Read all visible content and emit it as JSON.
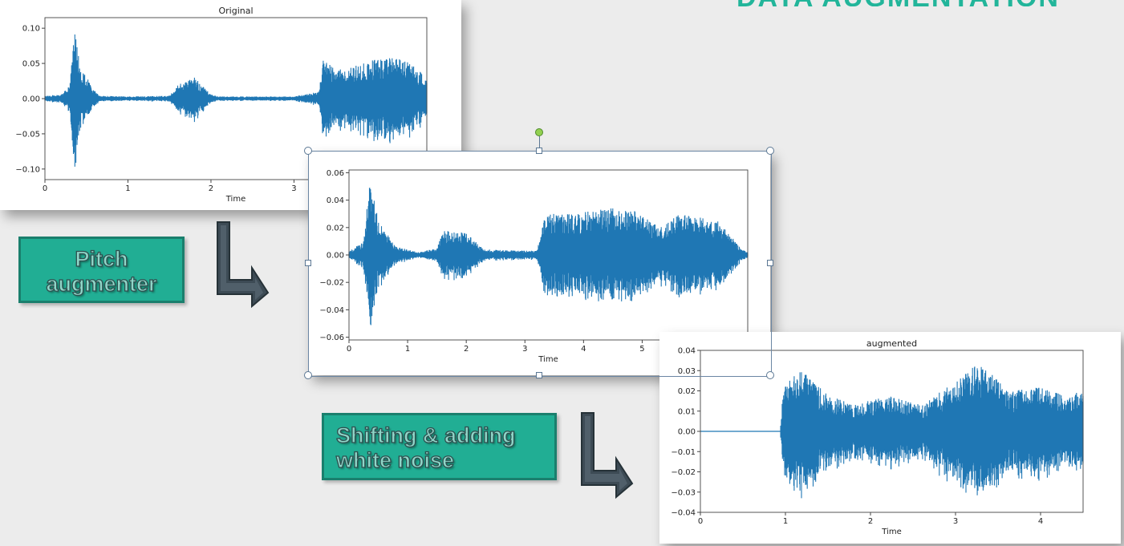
{
  "slide_title": "DATA AUGMENTATION",
  "colors": {
    "wave": "#1f77b4",
    "label_fill": "#21ae94",
    "arrow": "#37474f",
    "title": "#22b59a"
  },
  "labels": {
    "pitch": [
      "Pitch",
      "augmenter"
    ],
    "shift": [
      "Shifting & adding",
      "white noise"
    ]
  },
  "chart_data": [
    {
      "type": "line",
      "title": "Original",
      "xlabel": "Time",
      "ylabel": "",
      "xlim": [
        0,
        4.6
      ],
      "ylim": [
        -0.115,
        0.115
      ],
      "xticks": [
        "0",
        "1",
        "2",
        "3",
        "4"
      ],
      "xtick_values": [
        0,
        1,
        2,
        3,
        4
      ],
      "yticks": [
        "0.10",
        "0.05",
        "0.00",
        "−0.05",
        "−0.10"
      ],
      "ytick_values": [
        0.1,
        0.05,
        0.0,
        -0.05,
        -0.1
      ],
      "series": [
        {
          "envelope": [
            [
              0,
              0.004
            ],
            [
              0.2,
              0.006
            ],
            [
              0.3,
              0.02
            ],
            [
              0.36,
              0.105
            ],
            [
              0.42,
              0.05
            ],
            [
              0.55,
              0.02
            ],
            [
              0.65,
              0.004
            ],
            [
              1.0,
              0.003
            ],
            [
              1.5,
              0.004
            ],
            [
              1.6,
              0.02
            ],
            [
              1.8,
              0.03
            ],
            [
              2.0,
              0.006
            ],
            [
              2.1,
              0.003
            ],
            [
              3.0,
              0.003
            ],
            [
              3.3,
              0.01
            ],
            [
              3.35,
              0.055
            ],
            [
              3.6,
              0.04
            ],
            [
              3.9,
              0.055
            ],
            [
              4.2,
              0.06
            ],
            [
              4.4,
              0.05
            ],
            [
              4.6,
              0.03
            ]
          ]
        }
      ]
    },
    {
      "type": "line",
      "title": "",
      "xlabel": "Time",
      "ylabel": "",
      "xlim": [
        0,
        6.8
      ],
      "ylim": [
        -0.062,
        0.062
      ],
      "xticks": [
        "0",
        "1",
        "2",
        "3",
        "4",
        "5"
      ],
      "xtick_values": [
        0,
        1,
        2,
        3,
        4,
        5
      ],
      "yticks": [
        "0.06",
        "0.04",
        "0.02",
        "0.00",
        "−0.02",
        "−0.04",
        "−0.06"
      ],
      "ytick_values": [
        0.06,
        0.04,
        0.02,
        0.0,
        -0.02,
        -0.04,
        -0.06
      ],
      "series": [
        {
          "envelope": [
            [
              0,
              0.003
            ],
            [
              0.25,
              0.01
            ],
            [
              0.35,
              0.056
            ],
            [
              0.5,
              0.025
            ],
            [
              0.8,
              0.006
            ],
            [
              1.2,
              0.002
            ],
            [
              1.5,
              0.005
            ],
            [
              1.6,
              0.018
            ],
            [
              2.0,
              0.016
            ],
            [
              2.3,
              0.004
            ],
            [
              3.2,
              0.003
            ],
            [
              3.35,
              0.03
            ],
            [
              3.9,
              0.03
            ],
            [
              4.4,
              0.035
            ],
            [
              4.9,
              0.032
            ],
            [
              5.3,
              0.02
            ],
            [
              5.6,
              0.03
            ],
            [
              6.3,
              0.025
            ],
            [
              6.7,
              0.004
            ],
            [
              6.8,
              0.002
            ]
          ]
        }
      ]
    },
    {
      "type": "line",
      "title": "augmented",
      "xlabel": "Time",
      "ylabel": "",
      "xlim": [
        0,
        4.5
      ],
      "ylim": [
        -0.04,
        0.04
      ],
      "xticks": [
        "0",
        "1",
        "2",
        "3",
        "4"
      ],
      "xtick_values": [
        0,
        1,
        2,
        3,
        4
      ],
      "yticks": [
        "0.04",
        "0.03",
        "0.02",
        "0.01",
        "0.00",
        "−0.01",
        "−0.02",
        "−0.03",
        "−0.04"
      ],
      "ytick_values": [
        0.04,
        0.03,
        0.02,
        0.01,
        0.0,
        -0.01,
        -0.02,
        -0.03,
        -0.04
      ],
      "series": [
        {
          "envelope": [
            [
              0,
              0.0
            ],
            [
              0.94,
              0.0
            ],
            [
              0.96,
              0.015
            ],
            [
              1.0,
              0.025
            ],
            [
              1.2,
              0.03
            ],
            [
              1.5,
              0.018
            ],
            [
              1.8,
              0.013
            ],
            [
              2.2,
              0.018
            ],
            [
              2.6,
              0.013
            ],
            [
              3.0,
              0.025
            ],
            [
              3.3,
              0.035
            ],
            [
              3.6,
              0.02
            ],
            [
              4.0,
              0.022
            ],
            [
              4.3,
              0.018
            ],
            [
              4.5,
              0.02
            ]
          ]
        }
      ]
    }
  ]
}
